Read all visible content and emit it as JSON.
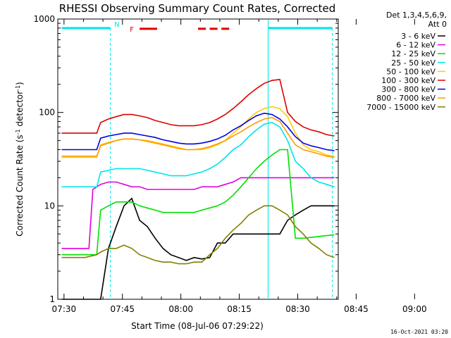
{
  "chart_data": {
    "type": "line",
    "title": "RHESSI Observing Summary Count Rates, Corrected",
    "xlabel": "Start Time (08-Jul-06 07:29:22)",
    "ylabel": "Corrected Count Rate (s⁻¹ detector⁻¹)",
    "y_scale": "log",
    "ylim": [
      1,
      1000
    ],
    "xlim_minutes": [
      -1,
      71
    ],
    "x_ticks": [
      "07:30",
      "07:45",
      "08:00",
      "08:15",
      "08:30",
      "08:45",
      "09:00"
    ],
    "y_ticks": [
      "1",
      "10",
      "100",
      "1000"
    ],
    "legend_header": [
      "Det 1,3,4,5,6,9,",
      "Att 0"
    ],
    "timestamp": "16-Oct-2021 03:20",
    "flags": {
      "night_label": "N",
      "flare_label": "F",
      "night_color": "#00e5e5",
      "flare_color": "#e00000"
    },
    "series": [
      {
        "name": "3 - 6 keV",
        "color": "#000000",
        "x": [
          0,
          7,
          10,
          12,
          14,
          16,
          18,
          20,
          22,
          24,
          26,
          28,
          30,
          32,
          34,
          36,
          38,
          40,
          42,
          44,
          46,
          48,
          50,
          52,
          54,
          56,
          58,
          60,
          62,
          64,
          66,
          68,
          70
        ],
        "y": [
          1,
          1,
          1,
          3.5,
          6,
          10,
          12,
          7,
          6,
          4.5,
          3.5,
          3,
          2.8,
          2.6,
          2.8,
          2.7,
          2.8,
          4,
          4,
          5,
          5,
          5,
          5,
          5,
          5,
          5,
          7,
          8,
          9,
          10,
          10,
          10,
          10
        ]
      },
      {
        "name": "6 - 12 keV",
        "color": "#e000e0",
        "x": [
          0,
          7,
          8,
          10,
          12,
          14,
          16,
          18,
          20,
          22,
          24,
          26,
          28,
          30,
          32,
          34,
          36,
          38,
          40,
          42,
          44,
          46,
          48,
          50,
          52,
          54,
          56,
          58,
          60,
          62,
          64,
          66,
          68,
          70
        ],
        "y": [
          3.5,
          3.5,
          15,
          17,
          18,
          18,
          17,
          16,
          16,
          15,
          15,
          15,
          15,
          15,
          15,
          15,
          16,
          16,
          16,
          17,
          18,
          20,
          20,
          20,
          20,
          20,
          20,
          20,
          20,
          20,
          20,
          20,
          20,
          20
        ]
      },
      {
        "name": "12 - 25 keV",
        "color": "#00e000",
        "x": [
          0,
          9,
          10,
          12,
          14,
          16,
          18,
          20,
          22,
          24,
          26,
          28,
          30,
          32,
          34,
          36,
          38,
          40,
          42,
          44,
          46,
          48,
          50,
          52,
          54,
          56,
          58,
          60,
          62,
          64,
          66,
          68,
          70
        ],
        "y": [
          3,
          3,
          9,
          10,
          11,
          11,
          11,
          10,
          9.5,
          9,
          8.5,
          8.5,
          8.5,
          8.5,
          8.5,
          9,
          9.5,
          10,
          11,
          13,
          16,
          20,
          25,
          30,
          35,
          40,
          40,
          4.5,
          4.5,
          4.6,
          4.7,
          4.8,
          4.9
        ]
      },
      {
        "name": "25 - 50 keV",
        "color": "#00e5e5",
        "x": [
          0,
          3,
          6,
          9,
          10,
          12,
          14,
          16,
          18,
          20,
          22,
          24,
          26,
          28,
          30,
          32,
          34,
          36,
          38,
          40,
          42,
          44,
          46,
          48,
          50,
          52,
          54,
          56,
          58,
          60,
          62,
          64,
          66,
          68,
          70
        ],
        "y": [
          16,
          16,
          16,
          16,
          23,
          24,
          25,
          25,
          25,
          25,
          24,
          23,
          22,
          21,
          21,
          21,
          22,
          23,
          25,
          28,
          33,
          40,
          45,
          55,
          65,
          75,
          78,
          70,
          50,
          30,
          25,
          20,
          18,
          17,
          16
        ]
      },
      {
        "name": "50 - 100 keV",
        "color": "#ffcc00",
        "x": [
          0,
          3,
          6,
          9,
          10,
          12,
          14,
          16,
          18,
          20,
          22,
          24,
          26,
          28,
          30,
          32,
          34,
          36,
          38,
          40,
          42,
          44,
          46,
          48,
          50,
          52,
          54,
          56,
          58,
          60,
          62,
          64,
          66,
          68,
          70
        ],
        "y": [
          33,
          33,
          33,
          33,
          45,
          48,
          50,
          52,
          52,
          51,
          50,
          48,
          46,
          44,
          42,
          40,
          40,
          40,
          42,
          45,
          50,
          60,
          70,
          85,
          100,
          110,
          115,
          110,
          90,
          60,
          45,
          40,
          38,
          35,
          34
        ]
      },
      {
        "name": "100 - 300 keV",
        "color": "#e00000",
        "x": [
          0,
          3,
          6,
          9,
          10,
          12,
          14,
          16,
          18,
          20,
          22,
          24,
          26,
          28,
          30,
          32,
          34,
          36,
          38,
          40,
          42,
          44,
          46,
          48,
          50,
          52,
          54,
          56,
          58,
          60,
          62,
          64,
          66,
          68,
          70
        ],
        "y": [
          60,
          60,
          60,
          60,
          78,
          85,
          90,
          95,
          95,
          92,
          88,
          82,
          78,
          74,
          72,
          72,
          72,
          74,
          78,
          85,
          95,
          110,
          130,
          155,
          180,
          205,
          220,
          225,
          100,
          80,
          70,
          65,
          62,
          58,
          56
        ]
      },
      {
        "name": "300 - 800 keV",
        "color": "#0000e0",
        "x": [
          0,
          3,
          6,
          9,
          10,
          12,
          14,
          16,
          18,
          20,
          22,
          24,
          26,
          28,
          30,
          32,
          34,
          36,
          38,
          40,
          42,
          44,
          46,
          48,
          50,
          52,
          54,
          56,
          58,
          60,
          62,
          64,
          66,
          68,
          70
        ],
        "y": [
          40,
          40,
          40,
          40,
          53,
          56,
          58,
          60,
          60,
          58,
          56,
          54,
          51,
          49,
          47,
          46,
          46,
          47,
          49,
          52,
          57,
          65,
          72,
          82,
          92,
          98,
          95,
          85,
          70,
          55,
          47,
          44,
          42,
          40,
          39
        ]
      },
      {
        "name": "800 - 7000 keV",
        "color": "#ff9900",
        "x": [
          0,
          3,
          6,
          9,
          10,
          12,
          14,
          16,
          18,
          20,
          22,
          24,
          26,
          28,
          30,
          32,
          34,
          36,
          38,
          40,
          42,
          44,
          46,
          48,
          50,
          52,
          54,
          56,
          58,
          60,
          62,
          64,
          66,
          68,
          70
        ],
        "y": [
          34,
          34,
          34,
          34,
          44,
          47,
          50,
          52,
          52,
          51,
          49,
          47,
          45,
          43,
          41,
          40,
          40,
          41,
          43,
          46,
          50,
          56,
          62,
          70,
          78,
          85,
          88,
          80,
          60,
          45,
          40,
          38,
          36,
          34,
          33
        ]
      },
      {
        "name": "7000 - 15000 keV",
        "color": "#808000",
        "x": [
          0,
          3,
          6,
          9,
          10,
          12,
          14,
          16,
          18,
          20,
          22,
          24,
          26,
          28,
          30,
          32,
          34,
          36,
          38,
          40,
          42,
          44,
          46,
          48,
          50,
          52,
          54,
          56,
          58,
          60,
          62,
          64,
          66,
          68,
          70
        ],
        "y": [
          2.8,
          2.8,
          2.8,
          3,
          3.2,
          3.5,
          3.5,
          3.8,
          3.5,
          3,
          2.8,
          2.6,
          2.5,
          2.5,
          2.4,
          2.4,
          2.5,
          2.5,
          3,
          3.5,
          4.5,
          5.5,
          6.5,
          8,
          9,
          10,
          10,
          9,
          8,
          6,
          5,
          4,
          3.5,
          3,
          2.8
        ]
      }
    ]
  }
}
